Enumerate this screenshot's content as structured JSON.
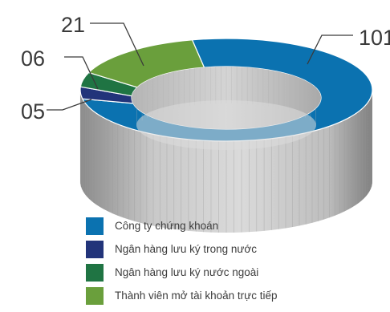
{
  "chart_data": {
    "type": "pie",
    "categories": [
      "Công ty chứng khoán",
      "Ngân hàng lưu ký trong nước",
      "Ngân hàng lưu ký nước ngoài",
      "Thành viên mở tài khoản trực tiếp"
    ],
    "values": [
      101,
      5,
      6,
      21
    ],
    "value_labels": [
      "101",
      "05",
      "06",
      "21"
    ],
    "colors": [
      "#0b72b0",
      "#22347a",
      "#1f7443",
      "#6a9f3c"
    ],
    "donut": true,
    "style_3d": true,
    "legend_position": "bottom"
  }
}
